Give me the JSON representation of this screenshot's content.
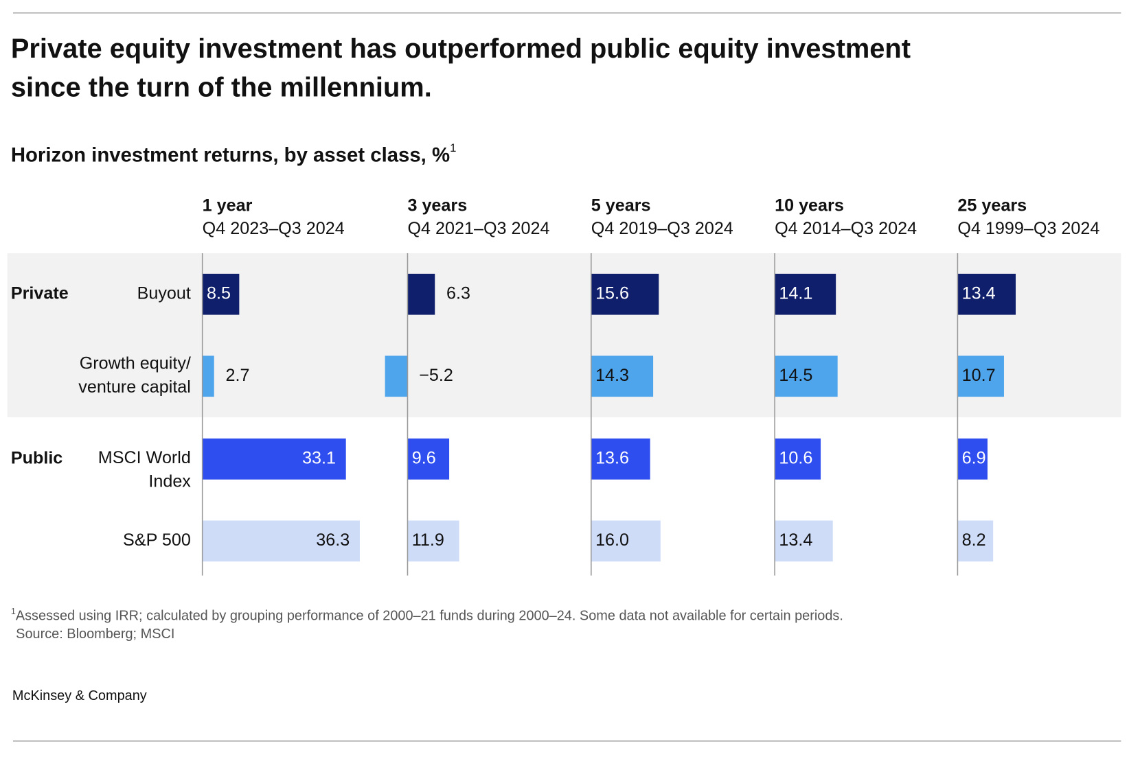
{
  "chart_data": {
    "type": "bar",
    "title": [
      "Private equity investment has outperformed public equity investment",
      "since the turn of the millennium."
    ],
    "subtitle": "Horizon investment returns, by asset class, %",
    "subtitle_marker": "1",
    "panels": [
      {
        "name": "1 year",
        "period": "Q4 2023–Q3 2024"
      },
      {
        "name": "3 years",
        "period": "Q4 2021–Q3 2024"
      },
      {
        "name": "5 years",
        "period": "Q4 2019–Q3 2024"
      },
      {
        "name": "10 years",
        "period": "Q4 2014–Q3 2024"
      },
      {
        "name": "25 years",
        "period": "Q4 1999–Q3 2024"
      }
    ],
    "xlim": [
      0,
      42
    ],
    "groups": [
      {
        "name": "Private",
        "shaded": true,
        "series": [
          {
            "name": [
              "Buyout"
            ],
            "color": "#0f1f6b",
            "values": [
              8.5,
              6.3,
              15.6,
              14.1,
              13.4
            ],
            "value_labels": [
              "8.5",
              "6.3",
              "15.6",
              "14.1",
              "13.4"
            ]
          },
          {
            "name": [
              "Growth equity/",
              "venture capital"
            ],
            "color": "#4ea5ec",
            "values": [
              2.7,
              -5.2,
              14.3,
              14.5,
              10.7
            ],
            "value_labels": [
              "2.7",
              "−5.2",
              "14.3",
              "14.5",
              "10.7"
            ]
          }
        ]
      },
      {
        "name": "Public",
        "shaded": false,
        "series": [
          {
            "name": [
              "MSCI World",
              "Index"
            ],
            "color": "#2f4ef0",
            "values": [
              33.1,
              9.6,
              13.6,
              10.6,
              6.9
            ],
            "value_labels": [
              "33.1",
              "9.6",
              "13.6",
              "10.6",
              "6.9"
            ]
          },
          {
            "name": [
              "S&P 500"
            ],
            "color": "#cfdcf8",
            "values": [
              36.3,
              11.9,
              16.0,
              13.4,
              8.2
            ],
            "value_labels": [
              "36.3",
              "11.9",
              "16.0",
              "13.4",
              "8.2"
            ]
          }
        ]
      }
    ],
    "footnote_marker": "1",
    "footnote": "Assessed using IRR; calculated by grouping performance of 2000–21 funds during 2000–24. Some data not available for certain periods.",
    "source": "Source: Bloomberg; MSCI",
    "brand": "McKinsey & Company"
  }
}
